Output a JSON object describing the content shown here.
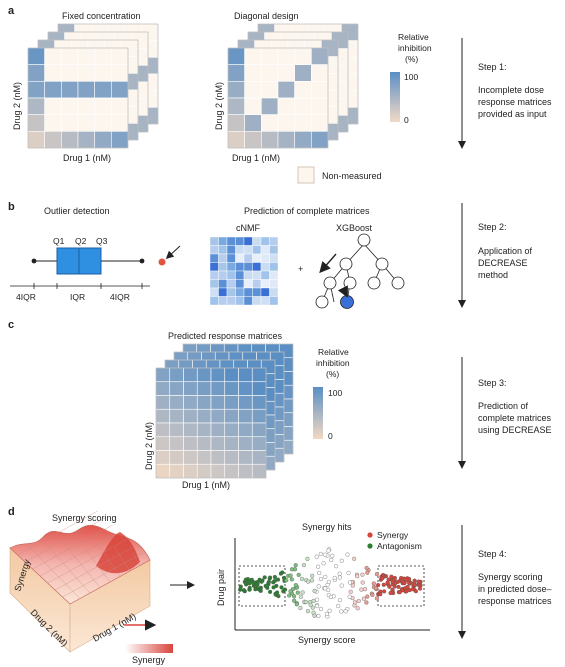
{
  "panels": {
    "a": {
      "label": "a",
      "left_title": "Fixed concentration",
      "right_title": "Diagonal design",
      "y_axis": "Drug 2 (nM)",
      "x_axis": "Drug 1 (nM)",
      "legend_title_1": "Relative",
      "legend_title_2": "inhibition",
      "legend_title_3": "(%)",
      "legend_max": "100",
      "legend_min": "0",
      "non_measured": "Non-measured",
      "step_title": "Step 1:",
      "step_lines": [
        "Incomplete dose",
        "response matrices",
        "provided as input"
      ]
    },
    "b": {
      "label": "b",
      "outlier_title": "Outlier detection",
      "q1": "Q1",
      "q2": "Q2",
      "q3": "Q3",
      "iqr_left": "4IQR",
      "iqr_mid": "IQR",
      "iqr_right": "4IQR",
      "prediction_title": "Prediction of complete matrices",
      "cnmf": "cNMF",
      "xgboost": "XGBoost",
      "plus": "+",
      "step_title": "Step 2:",
      "step_lines": [
        "Application of",
        "DECREASE",
        "method"
      ]
    },
    "c": {
      "label": "c",
      "title": "Predicted response matrices",
      "y_axis": "Drug 2 (nM)",
      "x_axis": "Drug 1 (nM)",
      "legend_title_1": "Relative",
      "legend_title_2": "inhibition",
      "legend_title_3": "(%)",
      "legend_max": "100",
      "legend_min": "0",
      "step_title": "Step 3:",
      "step_lines": [
        "Prediction of",
        "complete matrices",
        "using DECREASE"
      ]
    },
    "d": {
      "label": "d",
      "surface_title": "Synergy scoring",
      "surface_z": "Synergy",
      "surface_x": "Drug 1 (nM)",
      "surface_y": "Drug 2 (nM)",
      "colorbar_label": "Synergy",
      "hits_title": "Synergy hits",
      "legend_synergy": "Synergy",
      "legend_antagonism": "Antagonism",
      "y_axis": "Drug pair",
      "x_axis": "Synergy score",
      "step_title": "Step 4:",
      "step_lines": [
        "Synergy scoring",
        "in predicted dose–",
        "response matrices"
      ]
    }
  },
  "colors": {
    "inhibition_high": "#5b8fc4",
    "inhibition_low": "#f2d9c4",
    "synergy": "#d8453b",
    "antagonism": "#2e7d32",
    "neutral": "#ffffff",
    "box_fill": "#2f8fe0"
  }
}
